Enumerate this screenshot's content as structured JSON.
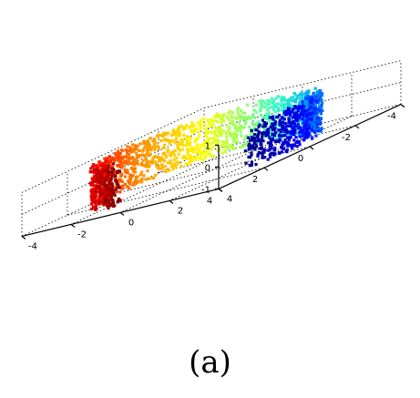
{
  "chart_data": {
    "type": "scatter",
    "projection": "3d",
    "title": "",
    "xlabel": "",
    "ylabel": "",
    "zlabel": "",
    "grid": true,
    "colormap": "jet",
    "x_ticks": [
      "4",
      "2",
      "0",
      "-2",
      "-4"
    ],
    "y_ticks": [
      "4",
      "2",
      "0",
      "-2",
      "-4"
    ],
    "z_ticks": [
      "1",
      "0",
      "-1"
    ],
    "xlim": [
      -4,
      4
    ],
    "ylim": [
      -4,
      4
    ],
    "zlim": [
      -1,
      1
    ],
    "shape": "S-curve manifold (\"swiss-roll\"-like band), points colored by position along the curve",
    "color_order": [
      "#00008f",
      "#0000ff",
      "#00a0ff",
      "#40ffbf",
      "#ffff00",
      "#ff8000",
      "#ff0000",
      "#800000"
    ],
    "point_count_approx": 2000
  },
  "caption": "(a)"
}
